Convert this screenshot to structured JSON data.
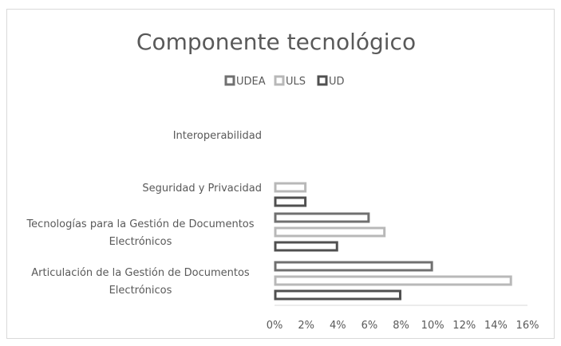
{
  "chart_data": {
    "type": "bar",
    "orientation": "horizontal",
    "title": "Componente tecnológico",
    "categories": [
      "Interoperabilidad",
      "Seguridad y Privacidad",
      "Tecnologías para la Gestión de Documentos Electrónicos",
      "Articulación de la Gestión de Documentos Electrónicos"
    ],
    "category_lines": [
      [
        "Interoperabilidad"
      ],
      [
        "Seguridad y Privacidad"
      ],
      [
        "Tecnologías para la Gestión de Documentos",
        "Electrónicos"
      ],
      [
        "Articulación de la Gestión de Documentos",
        "Electrónicos"
      ]
    ],
    "series": [
      {
        "name": "UDEA",
        "values": [
          0,
          0,
          6,
          10
        ],
        "color": "#707070"
      },
      {
        "name": "ULS",
        "values": [
          0,
          2,
          7,
          15
        ],
        "color": "#b8b8b8"
      },
      {
        "name": "UD",
        "values": [
          0,
          2,
          4,
          8
        ],
        "color": "#505050"
      }
    ],
    "xlim": [
      0,
      16
    ],
    "x_ticks": [
      "0%",
      "2%",
      "4%",
      "6%",
      "8%",
      "10%",
      "12%",
      "14%",
      "16%"
    ],
    "xlabel": "",
    "ylabel": "",
    "grid": false,
    "legend_position": "top"
  }
}
